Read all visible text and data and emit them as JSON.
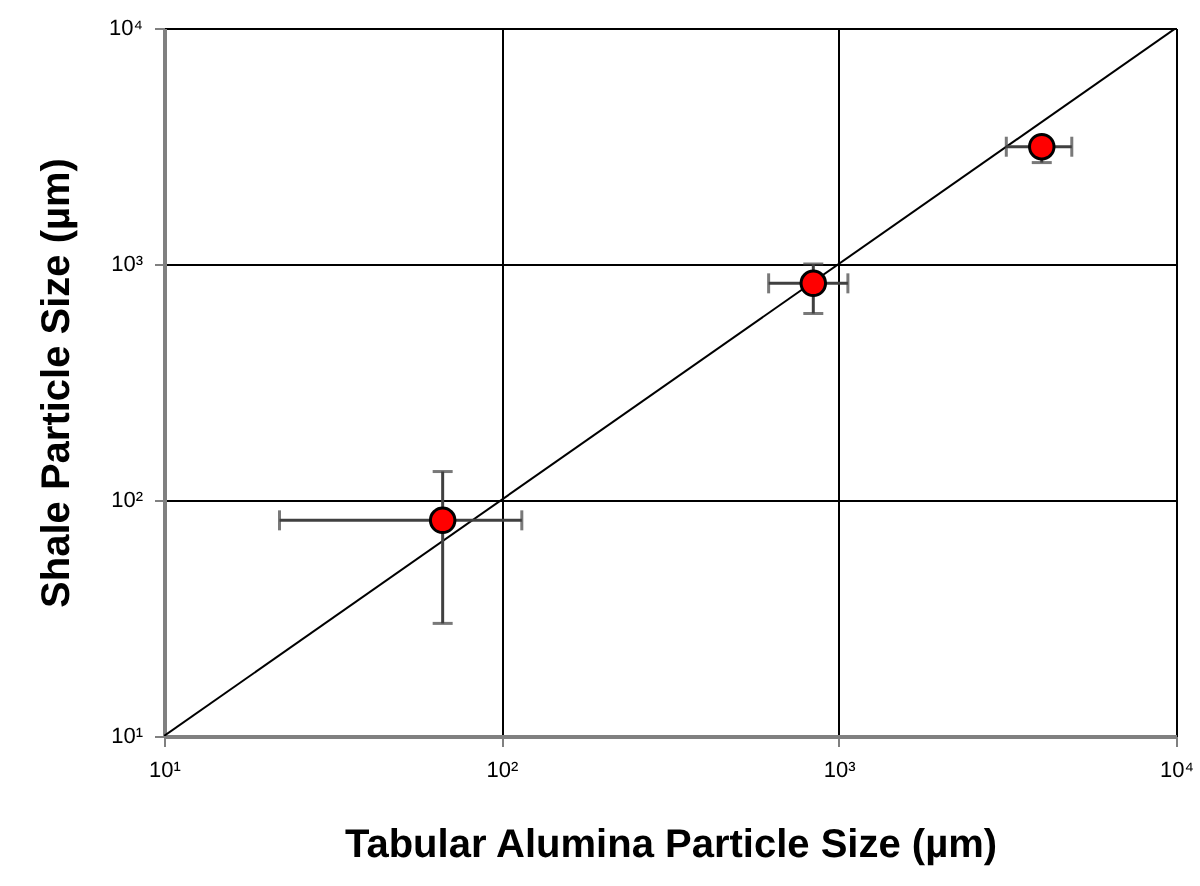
{
  "chart_data": {
    "type": "scatter",
    "xlabel": "Tabular Alumina Particle Size (µm)",
    "ylabel": "Shale Particle Size (µm)",
    "log": "xy",
    "grid": true,
    "marker": "circle",
    "xlim": [
      10,
      10000
    ],
    "ylim": [
      10,
      10000
    ],
    "xticks": [
      {
        "value": 10,
        "label": "10¹"
      },
      {
        "value": 100,
        "label": "10²"
      },
      {
        "value": 1000,
        "label": "10³"
      },
      {
        "value": 10000,
        "label": "10⁴"
      }
    ],
    "yticks": [
      {
        "value": 10,
        "label": "10¹"
      },
      {
        "value": 100,
        "label": "10²"
      },
      {
        "value": 1000,
        "label": "10³"
      },
      {
        "value": 10000,
        "label": "10⁴"
      }
    ],
    "series": [
      {
        "type": "line",
        "marker": "none",
        "color": "#000000",
        "x": [
          10,
          10000
        ],
        "values": [
          10,
          10000
        ]
      },
      {
        "color": "#ff0000",
        "x": [
          67,
          841,
          4000
        ],
        "values": [
          82,
          828,
          3140
        ],
        "errors": [
          [
            30,
            132
          ],
          [
            617,
            1000
          ],
          [
            2690,
            3300
          ]
        ],
        "xerrors": [
          [
            22,
            115
          ],
          [
            620,
            1065
          ],
          [
            3140,
            4910
          ]
        ]
      }
    ]
  }
}
